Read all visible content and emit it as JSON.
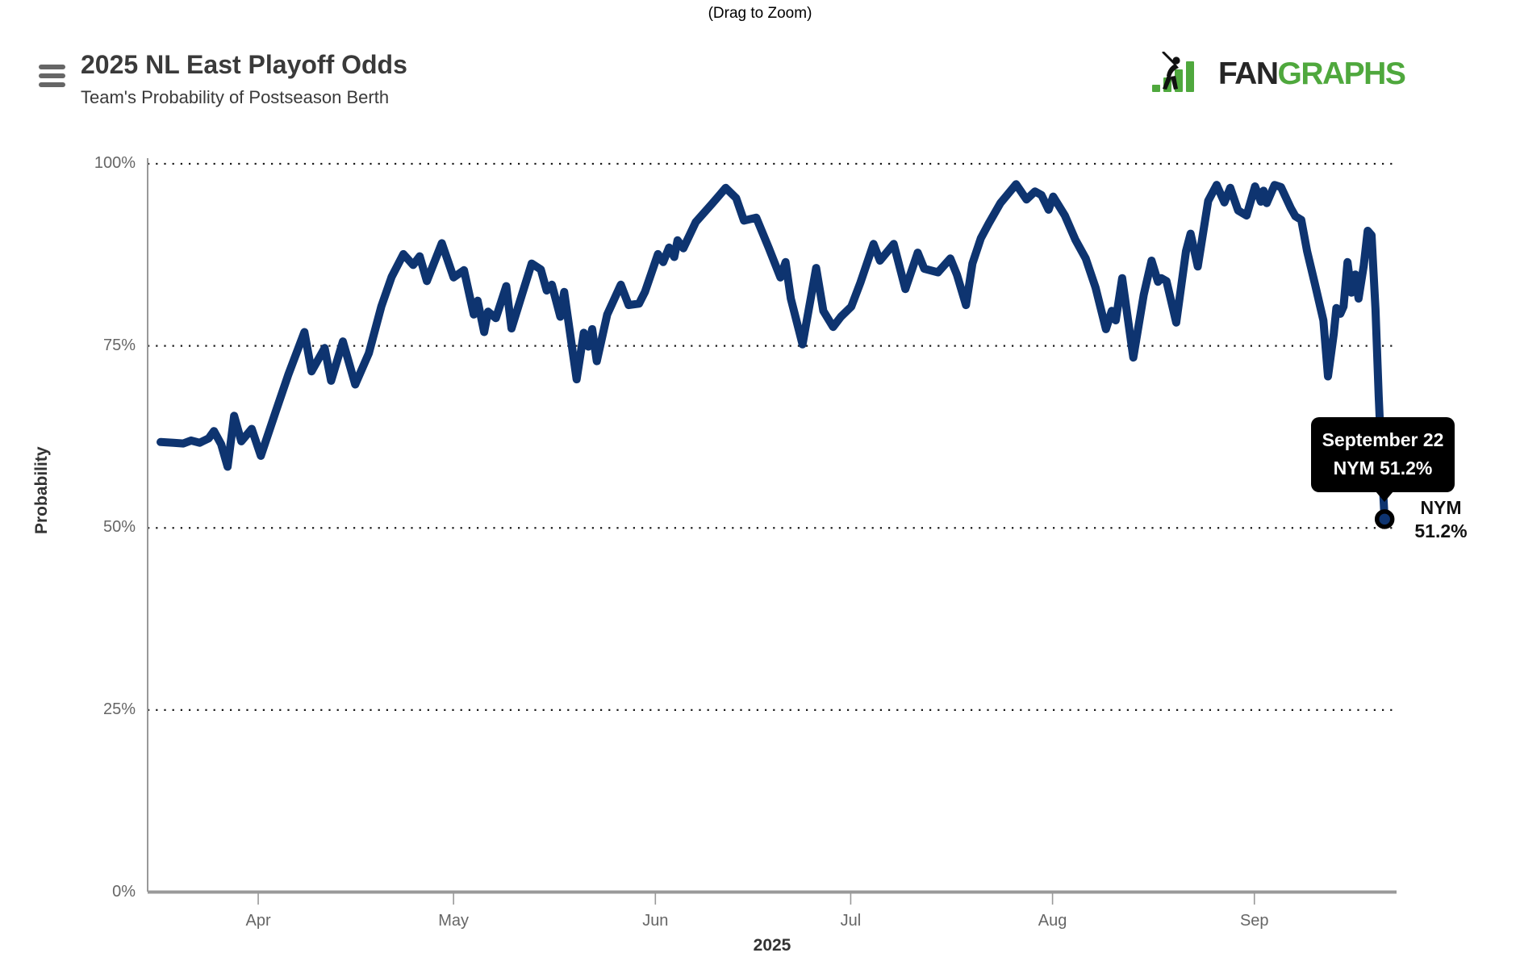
{
  "page": {
    "drag_hint": "(Drag to Zoom)"
  },
  "header": {
    "title": "2025 NL East Playoff Odds",
    "subtitle": "Team's Probability of Postseason Berth"
  },
  "menu": {
    "icon": "hamburger-menu-icon"
  },
  "logo": {
    "text_fan": "FAN",
    "text_graphs": "GRAPHS",
    "green": "#4fa83d",
    "dark": "#262626",
    "icon": "fangraphs-batter-bars-icon"
  },
  "tooltip": {
    "line1": "September 22",
    "line2": "NYM 51.2%",
    "bg": "#000000",
    "text_color": "#ffffff"
  },
  "end_label": {
    "team": "NYM",
    "value": "51.2%"
  },
  "chart_data": {
    "type": "line",
    "title": "2025 NL East Playoff Odds",
    "subtitle": "Team's Probability of Postseason Berth",
    "xlabel": "2025",
    "ylabel": "Probability",
    "ylim": [
      0,
      100
    ],
    "yticks": [
      {
        "label": "0%",
        "value": 0
      },
      {
        "label": "25%",
        "value": 25
      },
      {
        "label": "50%",
        "value": 50
      },
      {
        "label": "75%",
        "value": 75
      },
      {
        "label": "100%",
        "value": 100
      }
    ],
    "xticks": [
      {
        "label": "Apr",
        "day": 15
      },
      {
        "label": "May",
        "day": 45
      },
      {
        "label": "Jun",
        "day": 76
      },
      {
        "label": "Jul",
        "day": 106
      },
      {
        "label": "Aug",
        "day": 137
      },
      {
        "label": "Sep",
        "day": 168
      }
    ],
    "grid": "horizontal-dotted",
    "legend": "none",
    "series": [
      {
        "name": "NYM",
        "color": "#0e3470",
        "start_date": "Mar 17",
        "end_date": "September 22",
        "final_value": 51.2,
        "points": [
          [
            0,
            61.8
          ],
          [
            2,
            61.7
          ],
          [
            3.5,
            61.6
          ],
          [
            4.7,
            62.0
          ],
          [
            6,
            61.7
          ],
          [
            7.4,
            62.3
          ],
          [
            8.2,
            63.3
          ],
          [
            9.3,
            61.5
          ],
          [
            10.3,
            58.4
          ],
          [
            11.3,
            65.4
          ],
          [
            12.4,
            61.9
          ],
          [
            14,
            63.6
          ],
          [
            15.4,
            59.9
          ],
          [
            17.7,
            66.0
          ],
          [
            19.6,
            71.0
          ],
          [
            22.1,
            76.9
          ],
          [
            23.2,
            71.5
          ],
          [
            25.2,
            74.7
          ],
          [
            26.2,
            70.2
          ],
          [
            28,
            75.6
          ],
          [
            29.9,
            69.7
          ],
          [
            32,
            74.0
          ],
          [
            33.9,
            80.4
          ],
          [
            35.5,
            84.5
          ],
          [
            37.3,
            87.6
          ],
          [
            38.8,
            86.1
          ],
          [
            39.8,
            87.3
          ],
          [
            40.9,
            83.9
          ],
          [
            43.2,
            89.1
          ],
          [
            45,
            84.4
          ],
          [
            46.6,
            85.4
          ],
          [
            48.1,
            79.3
          ],
          [
            48.7,
            81.2
          ],
          [
            49.7,
            76.9
          ],
          [
            50.3,
            79.7
          ],
          [
            51.5,
            78.8
          ],
          [
            53.1,
            83.2
          ],
          [
            53.9,
            77.4
          ],
          [
            55.5,
            82.0
          ],
          [
            57,
            86.3
          ],
          [
            58.4,
            85.5
          ],
          [
            59.3,
            82.6
          ],
          [
            60.1,
            83.4
          ],
          [
            61.4,
            79.0
          ],
          [
            62,
            82.4
          ],
          [
            63.9,
            70.4
          ],
          [
            65,
            76.8
          ],
          [
            65.7,
            74.9
          ],
          [
            66.3,
            77.3
          ],
          [
            67,
            72.9
          ],
          [
            68.6,
            79.3
          ],
          [
            70.7,
            83.4
          ],
          [
            71.9,
            80.6
          ],
          [
            73.5,
            80.8
          ],
          [
            74.4,
            82.4
          ],
          [
            76.4,
            87.6
          ],
          [
            77.2,
            86.5
          ],
          [
            78.1,
            88.5
          ],
          [
            78.9,
            87.2
          ],
          [
            79.4,
            89.5
          ],
          [
            80.3,
            88.4
          ],
          [
            82.2,
            92.0
          ],
          [
            84.7,
            94.5
          ],
          [
            86.8,
            96.7
          ],
          [
            88.4,
            95.3
          ],
          [
            89.6,
            92.2
          ],
          [
            91.5,
            92.6
          ],
          [
            93.4,
            88.5
          ],
          [
            95.2,
            84.4
          ],
          [
            96,
            86.5
          ],
          [
            96.8,
            81.5
          ],
          [
            98.6,
            75.2
          ],
          [
            100.7,
            85.7
          ],
          [
            101.8,
            79.8
          ],
          [
            103.3,
            77.6
          ],
          [
            104.5,
            79.0
          ],
          [
            106.1,
            80.4
          ],
          [
            107.5,
            83.7
          ],
          [
            109.5,
            89.0
          ],
          [
            110.5,
            86.7
          ],
          [
            112.6,
            89.0
          ],
          [
            114.4,
            82.8
          ],
          [
            116.3,
            87.8
          ],
          [
            117.3,
            85.6
          ],
          [
            119.4,
            85.1
          ],
          [
            121.3,
            87.0
          ],
          [
            122.3,
            84.8
          ],
          [
            123.7,
            80.6
          ],
          [
            124.7,
            86.3
          ],
          [
            126,
            89.8
          ],
          [
            127.2,
            91.8
          ],
          [
            129,
            94.6
          ],
          [
            131.4,
            97.2
          ],
          [
            133,
            95.1
          ],
          [
            134.3,
            96.2
          ],
          [
            135.3,
            95.7
          ],
          [
            136.4,
            93.7
          ],
          [
            137.1,
            95.5
          ],
          [
            138.9,
            92.9
          ],
          [
            140.5,
            89.6
          ],
          [
            142.1,
            87.0
          ],
          [
            143.6,
            83.0
          ],
          [
            145.2,
            77.3
          ],
          [
            146.1,
            79.8
          ],
          [
            146.7,
            78.5
          ],
          [
            147.7,
            84.3
          ],
          [
            149.4,
            73.4
          ],
          [
            151,
            82.0
          ],
          [
            152.2,
            86.7
          ],
          [
            153.2,
            83.8
          ],
          [
            153.7,
            84.3
          ],
          [
            154.5,
            83.9
          ],
          [
            156,
            78.2
          ],
          [
            157.5,
            88.0
          ],
          [
            158.2,
            90.4
          ],
          [
            159.3,
            85.9
          ],
          [
            160.9,
            94.9
          ],
          [
            162.2,
            97.1
          ],
          [
            163.4,
            94.7
          ],
          [
            164.3,
            96.7
          ],
          [
            165.5,
            93.6
          ],
          [
            166.8,
            92.9
          ],
          [
            168.1,
            96.9
          ],
          [
            169,
            94.8
          ],
          [
            169.4,
            96.3
          ],
          [
            169.9,
            94.6
          ],
          [
            171.1,
            97.1
          ],
          [
            172.1,
            96.8
          ],
          [
            173.6,
            93.9
          ],
          [
            174.3,
            92.8
          ],
          [
            175.2,
            92.3
          ],
          [
            176.1,
            88.0
          ],
          [
            177.3,
            83.5
          ],
          [
            178.6,
            78.5
          ],
          [
            179.3,
            70.8
          ],
          [
            180.2,
            76.7
          ],
          [
            180.6,
            80.2
          ],
          [
            181.2,
            79.4
          ],
          [
            181.7,
            80.4
          ],
          [
            182.3,
            86.5
          ],
          [
            182.9,
            82.3
          ],
          [
            183.5,
            84.8
          ],
          [
            184,
            81.5
          ],
          [
            184.8,
            86.0
          ],
          [
            185.4,
            90.8
          ],
          [
            186,
            90.2
          ],
          [
            186.6,
            80.0
          ],
          [
            187.1,
            68.0
          ],
          [
            187.6,
            58.0
          ],
          [
            188,
            51.2
          ]
        ]
      }
    ],
    "marker": {
      "day": 188,
      "value": 51.2,
      "fill": "#0e3470",
      "ring": "#000000"
    },
    "colors": {
      "grid": "#1a1a1a",
      "axis": "#999999",
      "tick_label": "#666666"
    }
  }
}
